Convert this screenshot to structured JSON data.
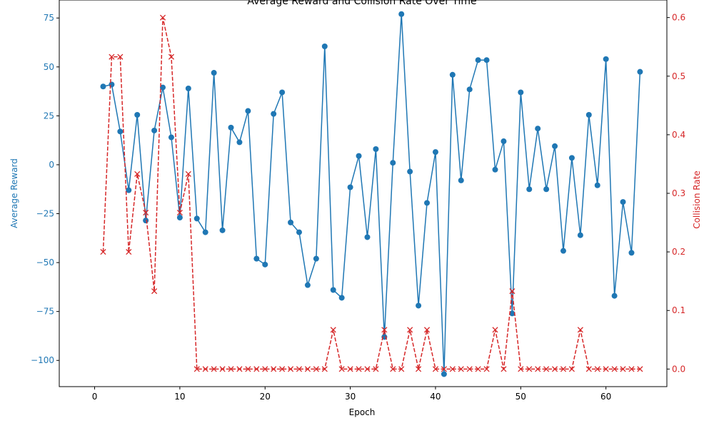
{
  "chart_data": {
    "type": "line",
    "title": "Average Reward and Collision Rate Over Time",
    "xlabel": "Epoch",
    "ylabel_left": "Average Reward",
    "ylabel_right": "Collision Rate",
    "xlim": [
      -4.15,
      67.15
    ],
    "ylim_left": [
      -113.4,
      84.2
    ],
    "ylim_right": [
      -0.03,
      0.63
    ],
    "x_ticks": [
      0,
      10,
      20,
      30,
      40,
      50,
      60
    ],
    "y_left_ticks": [
      -100,
      -75,
      -50,
      -25,
      0,
      25,
      50,
      75
    ],
    "y_right_ticks": [
      0.0,
      0.1,
      0.2,
      0.3,
      0.4,
      0.5,
      0.6
    ],
    "x_tick_labels": [
      "0",
      "10",
      "20",
      "30",
      "40",
      "50",
      "60"
    ],
    "y_left_tick_labels": [
      "−100",
      "−75",
      "−50",
      "−25",
      "0",
      "25",
      "50",
      "75"
    ],
    "y_right_tick_labels": [
      "0.0",
      "0.1",
      "0.2",
      "0.3",
      "0.4",
      "0.5",
      "0.6"
    ],
    "colors": {
      "reward": "#1f77b4",
      "collision": "#d62728",
      "axis": "#000000"
    },
    "x": [
      1,
      2,
      3,
      4,
      5,
      6,
      7,
      8,
      9,
      10,
      11,
      12,
      13,
      14,
      15,
      16,
      17,
      18,
      19,
      20,
      21,
      22,
      23,
      24,
      25,
      26,
      27,
      28,
      29,
      30,
      31,
      32,
      33,
      34,
      35,
      36,
      37,
      38,
      39,
      40,
      41,
      42,
      43,
      44,
      45,
      46,
      47,
      48,
      49,
      50,
      51,
      52,
      53,
      54,
      55,
      56,
      57,
      58,
      59,
      60,
      61,
      62,
      63,
      64
    ],
    "series": [
      {
        "name": "Average Reward",
        "axis": "left",
        "style": "solid",
        "marker": "circle",
        "values": [
          40,
          41,
          17,
          -13,
          25.5,
          -28.5,
          17.5,
          39.5,
          14,
          -27,
          39,
          -27.5,
          -34.5,
          47,
          -33.5,
          19,
          11.5,
          27.5,
          -48,
          -51,
          26,
          37,
          -29.5,
          -34.5,
          -61.5,
          -48,
          60.5,
          -64,
          -68,
          -11.5,
          4.5,
          -37,
          8,
          -88,
          1,
          77,
          -3.5,
          -72,
          -19.5,
          6.5,
          -107,
          46,
          -8,
          38.5,
          53.5,
          53.5,
          -2.5,
          12,
          -76,
          37,
          -12.5,
          18.5,
          -12.5,
          9.5,
          -44,
          3.5,
          -36,
          25.5,
          -10.5,
          54,
          -67,
          -19,
          -45,
          47.5
        ]
      },
      {
        "name": "Collision Rate",
        "axis": "right",
        "style": "dashed",
        "marker": "x",
        "values": [
          0.2,
          0.533,
          0.533,
          0.2,
          0.333,
          0.267,
          0.133,
          0.6,
          0.533,
          0.267,
          0.333,
          0,
          0,
          0,
          0,
          0,
          0,
          0,
          0,
          0,
          0,
          0,
          0,
          0,
          0,
          0,
          0,
          0.067,
          0,
          0,
          0,
          0,
          0,
          0.067,
          0,
          0,
          0.067,
          0,
          0.067,
          0,
          0,
          0,
          0,
          0,
          0,
          0,
          0.067,
          0,
          0.133,
          0,
          0,
          0,
          0,
          0,
          0,
          0,
          0.067,
          0,
          0,
          0,
          0,
          0,
          0,
          0
        ]
      }
    ],
    "grid": false,
    "legend": "none"
  }
}
